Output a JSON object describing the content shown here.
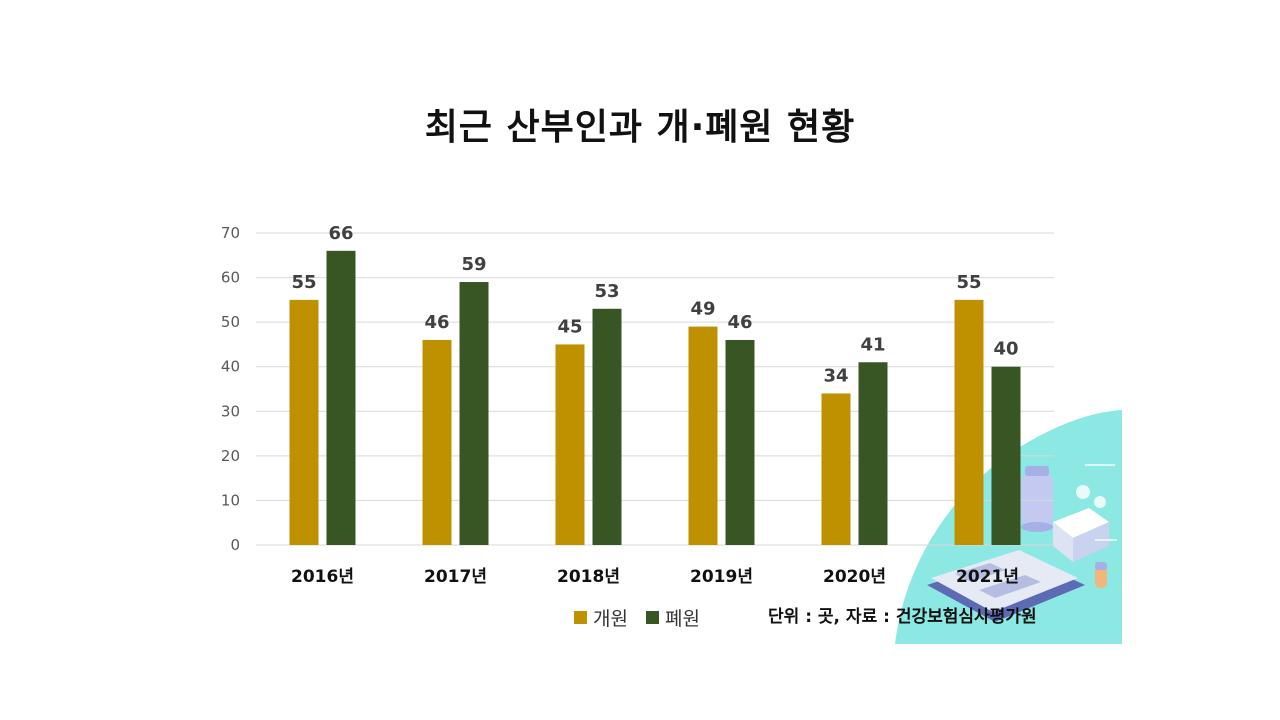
{
  "title": "최근 산부인과 개·폐원 현황",
  "source_note": "단위 : 곳, 자료 : 건강보험심사평가원",
  "colors": {
    "open": "#BF9000",
    "close": "#375623",
    "grid": "#D9D9D9",
    "decor_bg": "#8BE8E3"
  },
  "chart_data": {
    "type": "bar",
    "title": "최근 산부인과 개·폐원 현황",
    "categories": [
      "2016년",
      "2017년",
      "2018년",
      "2019년",
      "2020년",
      "2021년"
    ],
    "series": [
      {
        "name": "개원",
        "values": [
          55,
          46,
          45,
          49,
          34,
          55
        ]
      },
      {
        "name": "폐원",
        "values": [
          66,
          59,
          53,
          46,
          41,
          40
        ]
      }
    ],
    "ylim": [
      0,
      70
    ],
    "yticks": [
      0,
      10,
      20,
      30,
      40,
      50,
      60,
      70
    ],
    "grid": true,
    "legend": "bottom",
    "xlabel": "",
    "ylabel": ""
  }
}
